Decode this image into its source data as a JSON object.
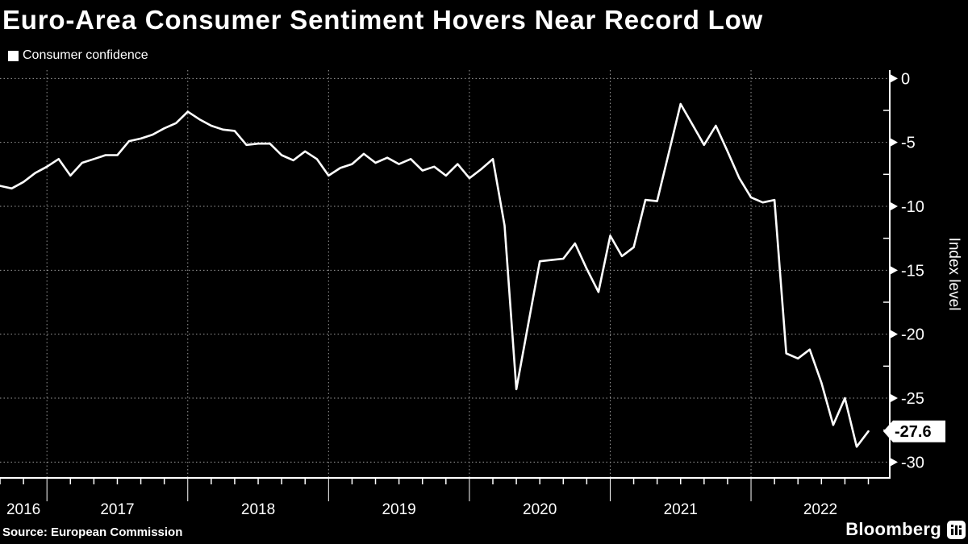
{
  "title": "Euro-Area Consumer Sentiment Hovers Near Record Low",
  "legend": {
    "label": "Consumer confidence",
    "marker_color": "#ffffff"
  },
  "y_axis": {
    "title": "Index level",
    "tick_values": [
      0,
      -5,
      -10,
      -15,
      -20,
      -25,
      -30
    ],
    "tick_labels": [
      "0",
      "-5",
      "-10",
      "-15",
      "-20",
      "-25",
      "-30"
    ]
  },
  "x_axis": {
    "year_labels": [
      "2016",
      "2017",
      "2018",
      "2019",
      "2020",
      "2021",
      "2022"
    ]
  },
  "callout": {
    "label": "-27.6",
    "value": -27.6
  },
  "source": "Source: European Commission",
  "brand": "Bloomberg",
  "colors": {
    "background": "#000000",
    "line": "#ffffff",
    "text": "#ffffff",
    "grid": "#9b9b9b",
    "callout_bg": "#ffffff",
    "callout_text": "#000000"
  },
  "chart_data": {
    "type": "line",
    "title": "Euro-Area Consumer Sentiment Hovers Near Record Low",
    "ylabel": "Index level",
    "ylim": [
      -31.24,
      0.65
    ],
    "y_ticks": [
      0,
      -5,
      -10,
      -15,
      -20,
      -25,
      -30
    ],
    "grid": "dotted",
    "legend_position": "top-left",
    "x_start_month": "2016-08",
    "x_end_month": "2022-10",
    "frequency": "monthly",
    "series": [
      {
        "name": "Consumer confidence",
        "values": [
          -8.4,
          -8.6,
          -8.1,
          -7.4,
          -6.9,
          -6.3,
          -7.6,
          -6.6,
          -6.3,
          -6.0,
          -6.0,
          -4.9,
          -4.7,
          -4.4,
          -3.9,
          -3.5,
          -2.6,
          -3.2,
          -3.7,
          -4.0,
          -4.1,
          -5.2,
          -5.1,
          -5.1,
          -6.0,
          -6.4,
          -5.7,
          -6.3,
          -7.6,
          -7.0,
          -6.7,
          -5.9,
          -6.6,
          -6.2,
          -6.7,
          -6.3,
          -7.2,
          -6.9,
          -7.6,
          -6.7,
          -7.8,
          -7.1,
          -6.3,
          -11.5,
          -24.3,
          -19.3,
          -14.3,
          -14.2,
          -14.1,
          -12.9,
          -14.9,
          -16.7,
          -12.3,
          -13.9,
          -13.2,
          -9.5,
          -9.6,
          -5.8,
          -2.0,
          -3.6,
          -5.2,
          -3.7,
          -5.7,
          -7.8,
          -9.3,
          -9.7,
          -9.5,
          -21.5,
          -21.9,
          -21.2,
          -23.8,
          -27.1,
          -25.0,
          -28.8,
          -27.6
        ]
      }
    ]
  }
}
